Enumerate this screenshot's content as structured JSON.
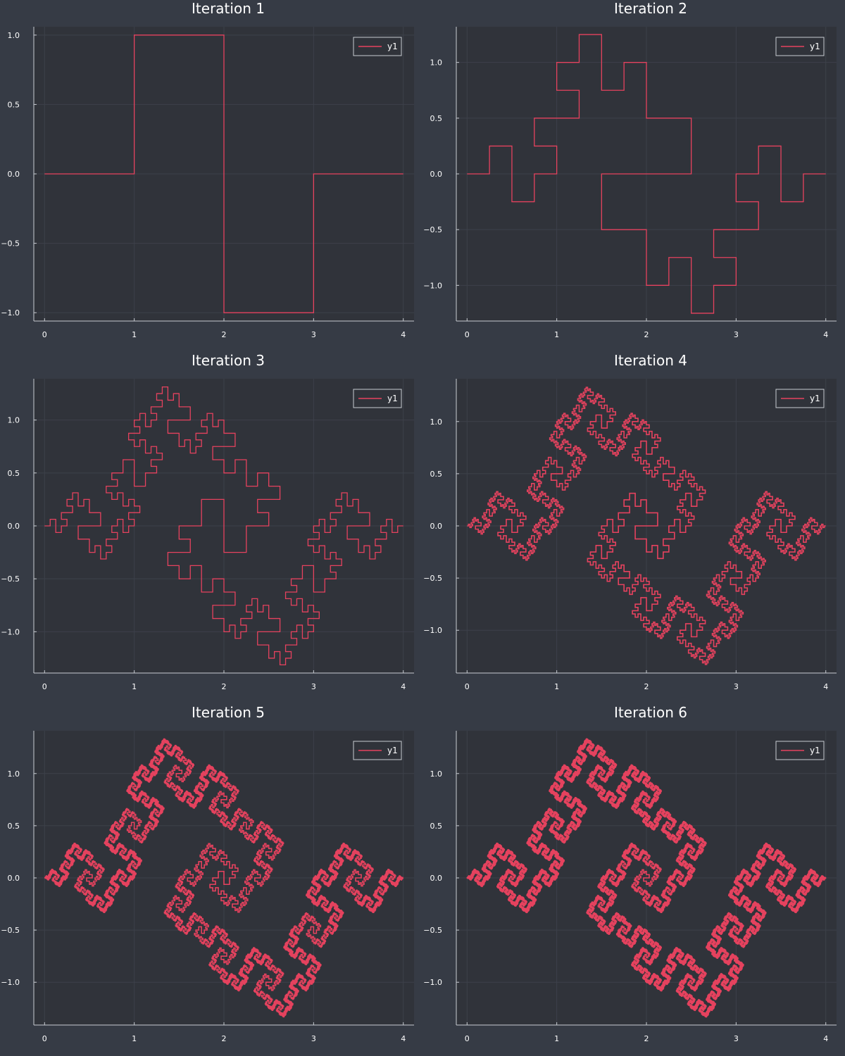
{
  "chart_data": [
    {
      "type": "line",
      "title": "Iteration 1",
      "iteration": 1,
      "xlim": [
        -0.12,
        4.12
      ],
      "ylim": [
        -1.06,
        1.06
      ],
      "xticks": [
        0,
        1,
        2,
        3,
        4
      ],
      "xtick_labels": [
        "0",
        "1",
        "2",
        "3",
        "4"
      ],
      "yticks": [
        -1.0,
        -0.5,
        0.0,
        0.5,
        1.0
      ],
      "ytick_labels": [
        "−1.0",
        "−0.5",
        "0.0",
        "0.5",
        "1.0"
      ],
      "grid": true,
      "legend": {
        "position": "top-right",
        "entries": [
          "y1"
        ]
      },
      "series": [
        {
          "name": "y1",
          "color": "#e5425e",
          "x": [
            0,
            1,
            1,
            2,
            2,
            3,
            3,
            4
          ],
          "y": [
            0,
            0,
            1,
            1,
            -1,
            -1,
            0,
            0
          ]
        }
      ]
    },
    {
      "type": "line",
      "title": "Iteration 2",
      "iteration": 2,
      "xlim": [
        -0.12,
        4.12
      ],
      "ylim": [
        -1.32,
        1.32
      ],
      "xticks": [
        0,
        1,
        2,
        3,
        4
      ],
      "xtick_labels": [
        "0",
        "1",
        "2",
        "3",
        "4"
      ],
      "yticks": [
        -1.0,
        -0.5,
        0.0,
        0.5,
        1.0
      ],
      "ytick_labels": [
        "−1.0",
        "−0.5",
        "0.0",
        "0.5",
        "1.0"
      ],
      "grid": true,
      "legend": {
        "position": "top-right",
        "entries": [
          "y1"
        ]
      },
      "series": [
        {
          "name": "y1",
          "color": "#e5425e",
          "generator": "square-wave fractal, 2 iterations",
          "x_range": [
            0,
            4
          ],
          "y_range": [
            -1.25,
            1.25
          ]
        }
      ]
    },
    {
      "type": "line",
      "title": "Iteration 3",
      "iteration": 3,
      "xlim": [
        -0.12,
        4.12
      ],
      "ylim": [
        -1.39,
        1.39
      ],
      "xticks": [
        0,
        1,
        2,
        3,
        4
      ],
      "xtick_labels": [
        "0",
        "1",
        "2",
        "3",
        "4"
      ],
      "yticks": [
        -1.0,
        -0.5,
        0.0,
        0.5,
        1.0
      ],
      "ytick_labels": [
        "−1.0",
        "−0.5",
        "0.0",
        "0.5",
        "1.0"
      ],
      "grid": true,
      "legend": {
        "position": "top-right",
        "entries": [
          "y1"
        ]
      },
      "series": [
        {
          "name": "y1",
          "color": "#e5425e",
          "generator": "square-wave fractal, 3 iterations",
          "x_range": [
            0,
            4
          ],
          "y_range": [
            -1.31,
            1.31
          ]
        }
      ]
    },
    {
      "type": "line",
      "title": "Iteration 4",
      "iteration": 4,
      "xlim": [
        -0.12,
        4.12
      ],
      "ylim": [
        -1.41,
        1.41
      ],
      "xticks": [
        0,
        1,
        2,
        3,
        4
      ],
      "xtick_labels": [
        "0",
        "1",
        "2",
        "3",
        "4"
      ],
      "yticks": [
        -1.0,
        -0.5,
        0.0,
        0.5,
        1.0
      ],
      "ytick_labels": [
        "−1.0",
        "−0.5",
        "0.0",
        "0.5",
        "1.0"
      ],
      "grid": true,
      "legend": {
        "position": "top-right",
        "entries": [
          "y1"
        ]
      },
      "series": [
        {
          "name": "y1",
          "color": "#e5425e",
          "generator": "square-wave fractal, 4 iterations",
          "x_range": [
            0,
            4
          ],
          "y_range": [
            -1.33,
            1.33
          ]
        }
      ]
    },
    {
      "type": "line",
      "title": "Iteration 5",
      "iteration": 5,
      "xlim": [
        -0.12,
        4.12
      ],
      "ylim": [
        -1.41,
        1.41
      ],
      "xticks": [
        0,
        1,
        2,
        3,
        4
      ],
      "xtick_labels": [
        "0",
        "1",
        "2",
        "3",
        "4"
      ],
      "yticks": [
        -1.0,
        -0.5,
        0.0,
        0.5,
        1.0
      ],
      "ytick_labels": [
        "−1.0",
        "−0.5",
        "0.0",
        "0.5",
        "1.0"
      ],
      "grid": true,
      "legend": {
        "position": "top-right",
        "entries": [
          "y1"
        ]
      },
      "series": [
        {
          "name": "y1",
          "color": "#e5425e",
          "generator": "square-wave fractal, 5 iterations",
          "x_range": [
            0,
            4
          ],
          "y_range": [
            -1.33,
            1.33
          ]
        }
      ]
    },
    {
      "type": "line",
      "title": "Iteration 6",
      "iteration": 6,
      "xlim": [
        -0.12,
        4.12
      ],
      "ylim": [
        -1.41,
        1.41
      ],
      "xticks": [
        0,
        1,
        2,
        3,
        4
      ],
      "xtick_labels": [
        "0",
        "1",
        "2",
        "3",
        "4"
      ],
      "yticks": [
        -1.0,
        -0.5,
        0.0,
        0.5,
        1.0
      ],
      "ytick_labels": [
        "−1.0",
        "−0.5",
        "0.0",
        "0.5",
        "1.0"
      ],
      "grid": true,
      "legend": {
        "position": "top-right",
        "entries": [
          "y1"
        ]
      },
      "series": [
        {
          "name": "y1",
          "color": "#e5425e",
          "generator": "square-wave fractal, 6 iterations",
          "x_range": [
            0,
            4
          ],
          "y_range": [
            -1.33,
            1.33
          ]
        }
      ]
    }
  ],
  "colors": {
    "background": "#363b45",
    "plot_area": "#30333a",
    "axis": "#c8ccd2",
    "grid": "#3d414a",
    "series": "#e5425e",
    "text": "#ffffff"
  }
}
